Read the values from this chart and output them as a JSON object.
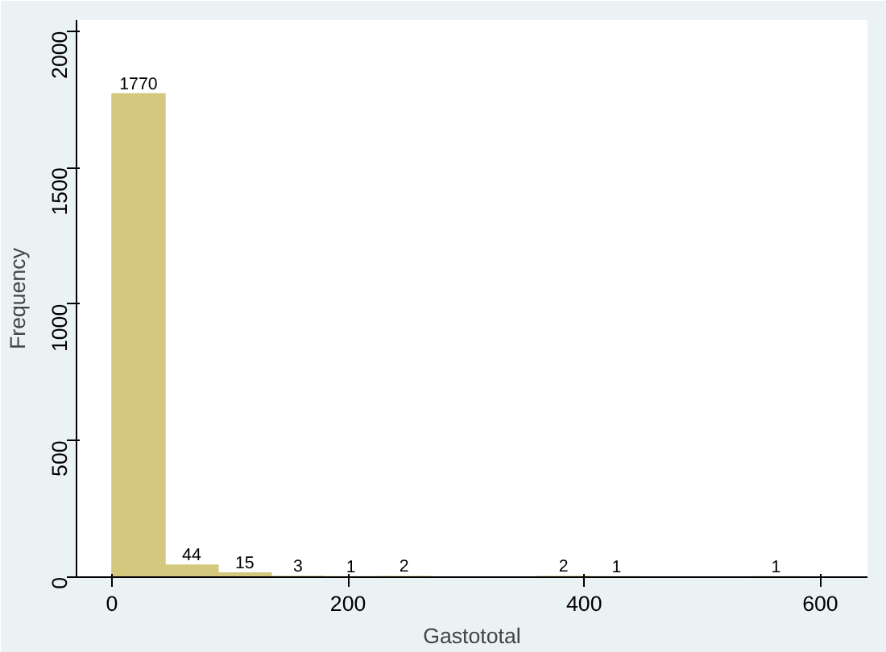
{
  "chart_data": {
    "type": "histogram",
    "xlabel": "Gastototal",
    "ylabel": "Frequency",
    "bins": [
      0,
      45,
      90,
      135,
      180,
      225,
      270,
      315,
      360,
      405,
      450,
      495,
      540,
      585
    ],
    "values": [
      1770,
      44,
      15,
      3,
      1,
      2,
      0,
      0,
      2,
      1,
      0,
      0,
      1
    ],
    "value_labels": [
      "1770",
      "44",
      "15",
      "3",
      "1",
      "2",
      null,
      null,
      "2",
      "1",
      null,
      null,
      "1"
    ],
    "color": "#d4c87f",
    "xlim": [
      -30,
      640
    ],
    "xticks": [
      0,
      200,
      400,
      600
    ],
    "ylim": [
      0,
      2040
    ],
    "yticks": [
      0,
      500,
      1000,
      1500,
      2000
    ],
    "grid": false
  }
}
